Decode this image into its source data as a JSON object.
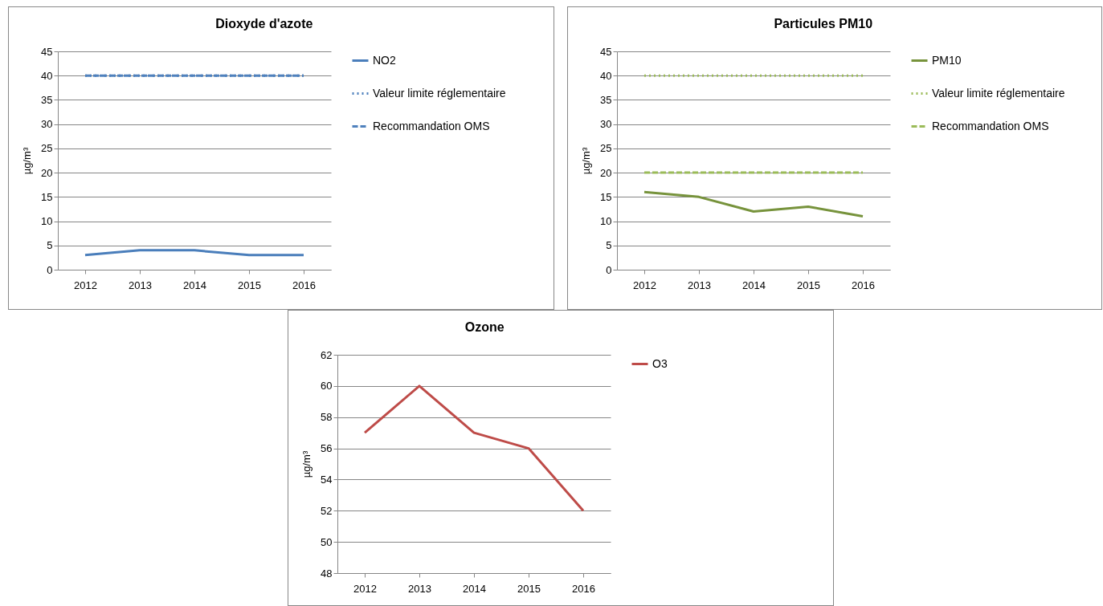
{
  "chart_data": [
    {
      "type": "line",
      "title": "Dioxyde d'azote",
      "ylabel": "µg/m³",
      "categories": [
        "2012",
        "2013",
        "2014",
        "2015",
        "2016"
      ],
      "ylim": [
        0,
        45
      ],
      "yticks": [
        0,
        5,
        10,
        15,
        20,
        25,
        30,
        35,
        40,
        45
      ],
      "grid": "y",
      "legend": "right",
      "series": [
        {
          "name": "NO2",
          "color": "#4a7ebb",
          "line_style": "solid",
          "values": [
            3,
            4,
            4,
            3,
            3
          ]
        },
        {
          "name": "Valeur limite réglementaire",
          "color": "#4f81bd",
          "line_style": "dotted",
          "values": [
            40,
            40,
            40,
            40,
            40
          ]
        },
        {
          "name": "Recommandation OMS",
          "color": "#4f81bd",
          "line_style": "dashed",
          "values": [
            40,
            40,
            40,
            40,
            40
          ]
        }
      ]
    },
    {
      "type": "line",
      "title": "Particules PM10",
      "ylabel": "µg/m³",
      "categories": [
        "2012",
        "2013",
        "2014",
        "2015",
        "2016"
      ],
      "ylim": [
        0,
        45
      ],
      "yticks": [
        0,
        5,
        10,
        15,
        20,
        25,
        30,
        35,
        40,
        45
      ],
      "grid": "y",
      "legend": "right",
      "series": [
        {
          "name": "PM10",
          "color": "#77933c",
          "line_style": "solid",
          "values": [
            16,
            15,
            12,
            13,
            11
          ]
        },
        {
          "name": "Valeur limite réglementaire",
          "color": "#9bbb59",
          "line_style": "dotted",
          "values": [
            40,
            40,
            40,
            40,
            40
          ]
        },
        {
          "name": "Recommandation OMS",
          "color": "#9bbb59",
          "line_style": "dashed",
          "values": [
            20,
            20,
            20,
            20,
            20
          ]
        }
      ]
    },
    {
      "type": "line",
      "title": "Ozone",
      "ylabel": "µg/m³",
      "categories": [
        "2012",
        "2013",
        "2014",
        "2015",
        "2016"
      ],
      "ylim": [
        48,
        62
      ],
      "yticks": [
        48,
        50,
        52,
        54,
        56,
        58,
        60,
        62
      ],
      "grid": "y",
      "legend": "right",
      "series": [
        {
          "name": "O3",
          "color": "#be4b48",
          "line_style": "solid",
          "values": [
            57,
            60,
            57,
            56,
            52
          ]
        }
      ]
    }
  ]
}
